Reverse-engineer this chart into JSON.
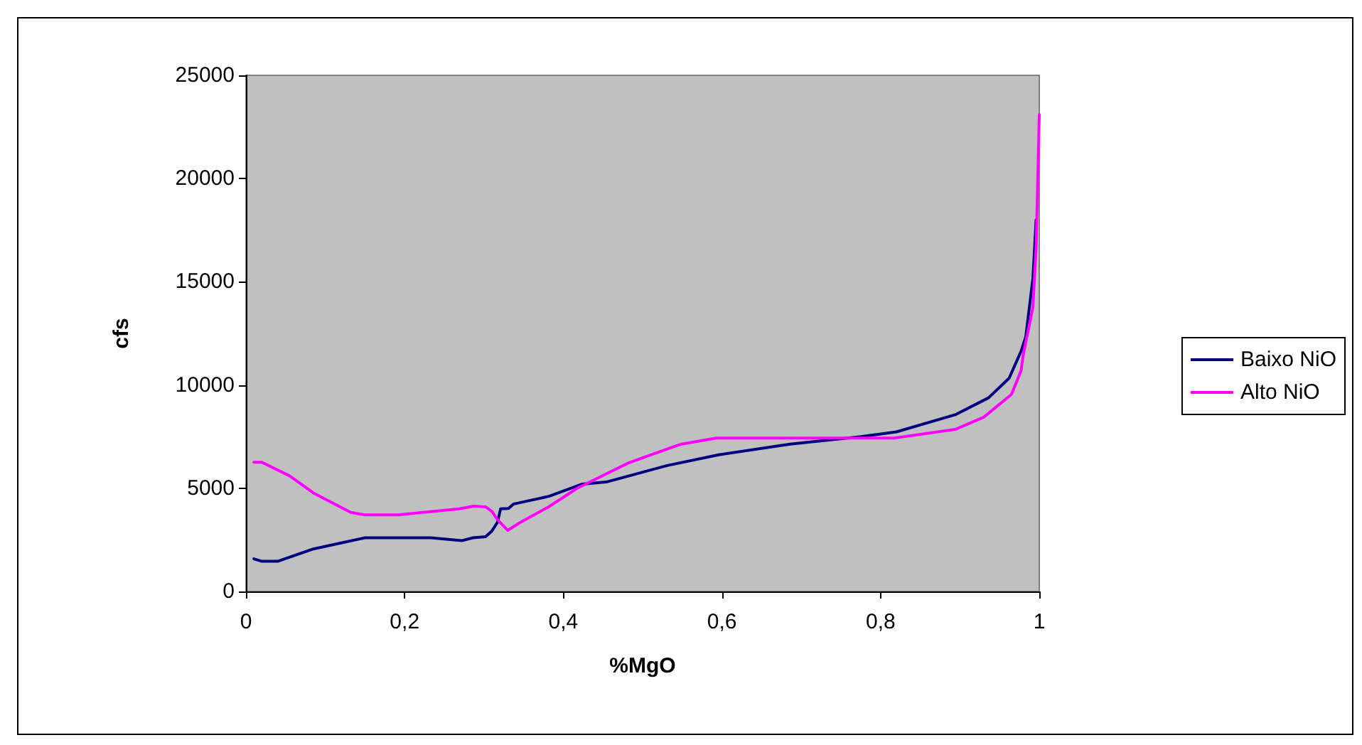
{
  "chart_data": {
    "type": "line",
    "xlabel": "%MgO",
    "ylabel": "cfs",
    "xlim": [
      0,
      1
    ],
    "xticks": [
      0,
      {
        "value": 0.2,
        "label": "0,2"
      },
      {
        "value": 0.4,
        "label": "0,4"
      },
      {
        "value": 0.6,
        "label": "0,6"
      },
      {
        "value": 0.8,
        "label": "0,8"
      },
      1
    ],
    "ylim": [
      0,
      25000
    ],
    "yticks": [
      0,
      5000,
      10000,
      15000,
      20000,
      25000
    ],
    "grid": false,
    "legend": "right",
    "marker": "none",
    "line_style": "solid",
    "series": [
      {
        "name": "Baixo NiO",
        "color": "#000080",
        "x": [
          0.01,
          0.02,
          0.04,
          0.085,
          0.15,
          0.233,
          0.272,
          0.286,
          0.302,
          0.31,
          0.317,
          0.321,
          0.331,
          0.337,
          0.382,
          0.424,
          0.454,
          0.483,
          0.531,
          0.596,
          0.686,
          0.775,
          0.82,
          0.894,
          0.936,
          0.962,
          0.977,
          0.983,
          0.992,
          0.996
        ],
        "values": [
          1580,
          1460,
          1460,
          2060,
          2600,
          2600,
          2460,
          2600,
          2650,
          2930,
          3350,
          4000,
          4020,
          4230,
          4610,
          5200,
          5300,
          5600,
          6100,
          6620,
          7140,
          7500,
          7730,
          8560,
          9380,
          10330,
          11630,
          12340,
          15180,
          18000
        ]
      },
      {
        "name": "Alto NiO",
        "color": "#ff00ff",
        "x": [
          0.01,
          0.02,
          0.055,
          0.085,
          0.132,
          0.15,
          0.192,
          0.269,
          0.287,
          0.302,
          0.31,
          0.317,
          0.33,
          0.346,
          0.382,
          0.418,
          0.483,
          0.531,
          0.549,
          0.593,
          0.817,
          0.894,
          0.93,
          0.965,
          0.977,
          0.98,
          0.992,
          0.996,
          1
        ],
        "values": [
          6260,
          6260,
          5600,
          4770,
          3830,
          3710,
          3710,
          4000,
          4130,
          4100,
          3880,
          3480,
          2960,
          3350,
          4110,
          5010,
          6240,
          6900,
          7140,
          7430,
          7430,
          7850,
          8440,
          9550,
          10690,
          11500,
          13760,
          16600,
          23100
        ]
      }
    ]
  }
}
